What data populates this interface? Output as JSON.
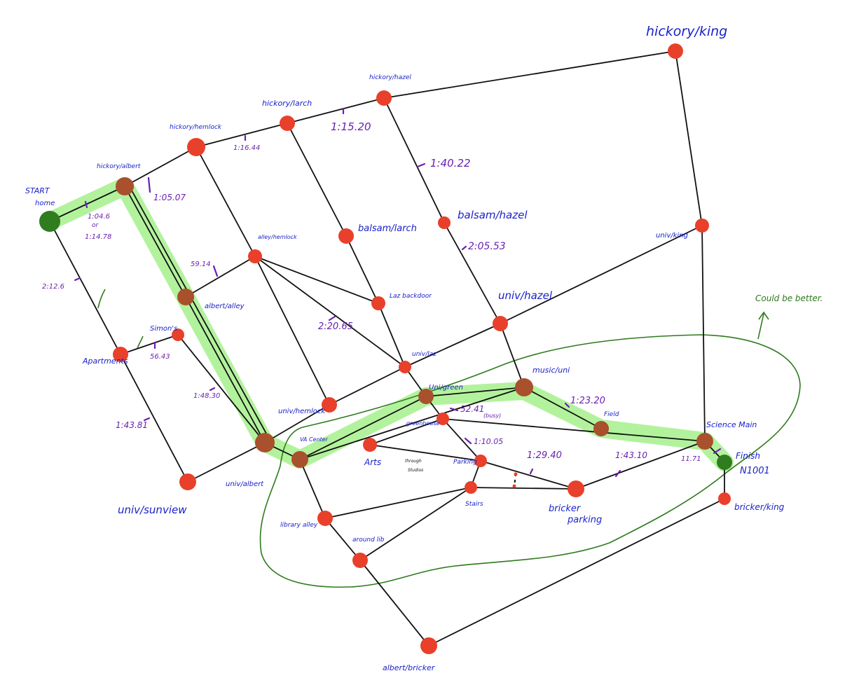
{
  "colors": {
    "node": "#e8402a",
    "visited_node": "#a9502c",
    "endpoint_node": "#2f7d1e",
    "highlight": "#a6f08c",
    "edge": "#111111",
    "node_label": "#1a22c8",
    "time_label": "#6a1fb0",
    "note": "#2d7a1c"
  },
  "nodes": {
    "start": "START",
    "home": "home",
    "hickory_albert": "hickory/albert",
    "hickory_hemlock": "hickory/hemlock",
    "hickory_larch": "hickory/larch",
    "hickory_hazel": "hickory/hazel",
    "hickory_king": "hickory/king",
    "alley_hemlock": "alley/hemlock",
    "balsam_larch": "balsam/larch",
    "balsam_hazel": "balsam/hazel",
    "univ_king": "univ/king",
    "laz_backdoor": "Laz backdoor",
    "univ_hazel": "univ/hazel",
    "albert_alley": "albert/alley",
    "simons": "Simon's",
    "apartments": "Apartments",
    "univ_laz": "univ/laz",
    "music_uni": "music/uni",
    "uni_green": "Uni/green",
    "univ_hemlock": "univ/hemlock",
    "field": "Field",
    "science_main": "Science Main",
    "greenhouse": "greenhouse",
    "va_center": "VA Center",
    "arts": "Arts",
    "parking": "Parking",
    "finish": "Finish",
    "n1001": "N1001",
    "univ_albert": "univ/albert",
    "univ_sunview": "univ/sunview",
    "stairs": "Stairs",
    "bricker_parking_1": "bricker",
    "bricker_parking_2": "parking",
    "bricker_king": "bricker/king",
    "library_alley": "library alley",
    "around_lib": "around lib",
    "albert_bricker": "albert/bricker"
  },
  "times": {
    "home_hickory_1": "1:04.6",
    "home_hickory_or": "or",
    "home_hickory_2": "1:14.78",
    "hickory_albert_hemlock": "1:05.07",
    "hemlock_larch": "1:16.44",
    "larch_hazel": "1:15.20",
    "hazel_balsam": "1:40.22",
    "balsam_univ_hazel": "2:05.53",
    "albert_alley": "59.14",
    "home_apartments": "2:12.6",
    "apartments_simons": "56.43",
    "alley_laz": "2:20.65",
    "simons_univ_albert": "1:48.30",
    "apartments_sunview": "1:43.81",
    "uni_green_greenhouse": "52.41",
    "uni_green_greenhouse_note": "(busy)",
    "music_field": "1:23.20",
    "greenhouse_parking": "1:10.05",
    "parking_bricker": "1:29.40",
    "bricker_science": "1:43.10",
    "science_finish": "11.71"
  },
  "notes": {
    "could_be_better": "Could be better.",
    "through_studio_1": "through",
    "through_studio_2": "Studios"
  }
}
